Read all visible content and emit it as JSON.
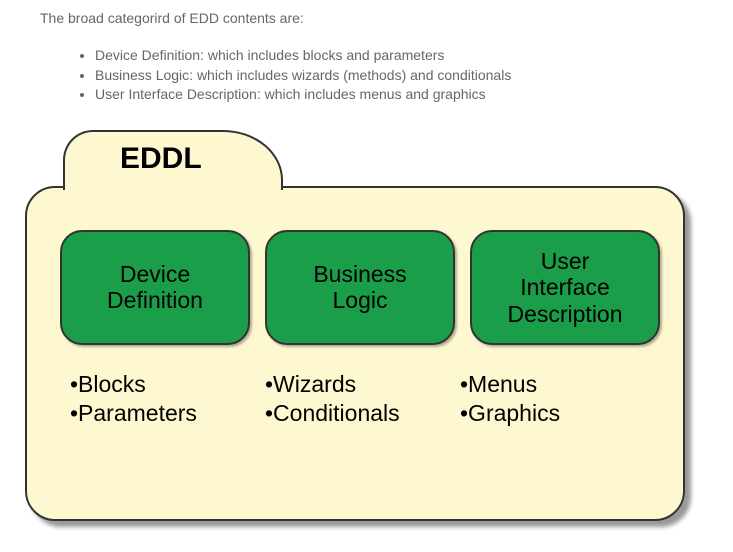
{
  "intro": "The broad categorird of EDD contents are:",
  "bullets": [
    "Device Definition: which includes blocks and parameters",
    "Business Logic: which includes wizards (methods) and conditionals",
    "User Interface Description: which includes menus and graphics"
  ],
  "diagram": {
    "title": "EDDL",
    "background_color": "#fdf8cf",
    "border_color": "#333333",
    "card_color": "#1a9e49",
    "categories": [
      {
        "line1": "Device",
        "line2": "Definition",
        "items": [
          "•Blocks",
          "•Parameters"
        ]
      },
      {
        "line1": "Business",
        "line2": "Logic",
        "items": [
          "•Wizards",
          "•Conditionals"
        ]
      },
      {
        "line1": "User",
        "line2": "Interface",
        "line3": "Description",
        "items": [
          "•Menus",
          "•Graphics"
        ]
      }
    ],
    "title_fontsize": 30,
    "card_fontsize": 23,
    "item_fontsize": 23
  }
}
